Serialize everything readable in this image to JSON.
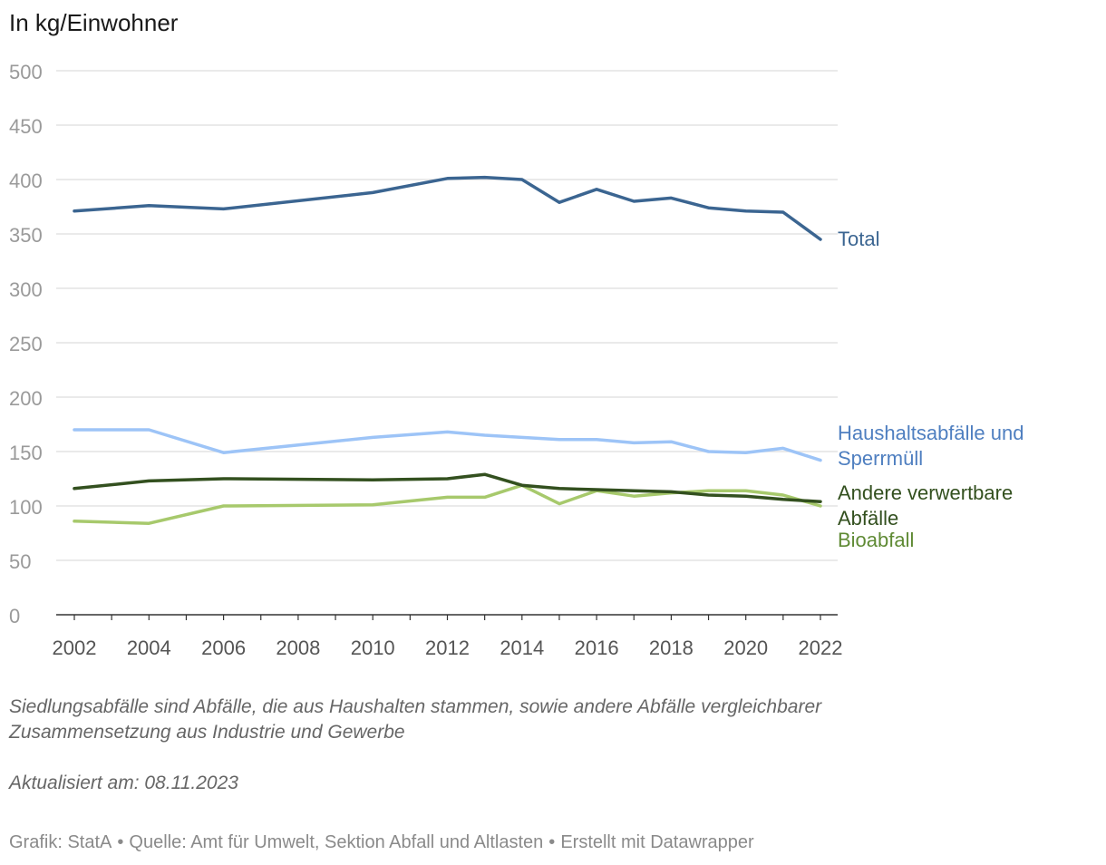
{
  "chart_data": {
    "type": "line",
    "ylabel": "In kg/Einwohner",
    "ylim": [
      0,
      500
    ],
    "yticks": [
      0,
      50,
      100,
      150,
      200,
      250,
      300,
      350,
      400,
      450,
      500
    ],
    "xticks": [
      2002,
      2004,
      2006,
      2008,
      2010,
      2012,
      2014,
      2016,
      2018,
      2020,
      2022
    ],
    "xlim": [
      2002,
      2022
    ],
    "grid": true,
    "legend": "direct labels at line ends (right)",
    "series": [
      {
        "name": "Total",
        "label_lines": [
          "Total"
        ],
        "color": "#3b6591",
        "x": [
          2002,
          2004,
          2006,
          2010,
          2012,
          2013,
          2014,
          2015,
          2016,
          2017,
          2018,
          2019,
          2020,
          2021,
          2022
        ],
        "values": [
          371,
          376,
          373,
          388,
          401,
          402,
          400,
          379,
          391,
          380,
          383,
          374,
          371,
          370,
          345
        ]
      },
      {
        "name": "Haushaltsabfälle und Sperrmüll",
        "label_lines": [
          "Haushaltsabfälle und",
          "Sperrmüll"
        ],
        "color": "#9dc4f7",
        "label_color": "#4f7fc0",
        "x": [
          2002,
          2004,
          2006,
          2010,
          2012,
          2013,
          2014,
          2015,
          2016,
          2017,
          2018,
          2019,
          2020,
          2021,
          2022
        ],
        "values": [
          170,
          170,
          149,
          163,
          168,
          165,
          163,
          161,
          161,
          158,
          159,
          150,
          149,
          153,
          142
        ]
      },
      {
        "name": "Andere verwertbare Abfälle",
        "label_lines": [
          "Andere verwertbare",
          "Abfälle"
        ],
        "color": "#33501f",
        "x": [
          2002,
          2004,
          2006,
          2010,
          2012,
          2013,
          2014,
          2015,
          2016,
          2017,
          2018,
          2019,
          2020,
          2021,
          2022
        ],
        "values": [
          116,
          123,
          125,
          124,
          125,
          129,
          119,
          116,
          115,
          114,
          113,
          110,
          109,
          106,
          104
        ]
      },
      {
        "name": "Bioabfall",
        "label_lines": [
          "Bioabfall"
        ],
        "color": "#a7c96c",
        "label_color": "#5f8a34",
        "x": [
          2002,
          2004,
          2006,
          2010,
          2012,
          2013,
          2014,
          2015,
          2016,
          2017,
          2018,
          2019,
          2020,
          2021,
          2022
        ],
        "values": [
          86,
          84,
          100,
          101,
          108,
          108,
          119,
          102,
          114,
          109,
          112,
          114,
          114,
          110,
          100
        ]
      }
    ]
  },
  "notes": {
    "description": "Siedlungsabfälle sind Abfälle, die aus Haushalten stammen, sowie andere Abfälle vergleichbarer Zusammensetzung aus Industrie und Gewerbe",
    "updated": "Aktualisiert am: 08.11.2023"
  },
  "footer": {
    "graphic": "Grafik: StatA",
    "source": "Quelle: Amt für Umwelt, Sektion Abfall und Altlasten",
    "tool": "Erstellt mit Datawrapper",
    "separator": "•"
  }
}
